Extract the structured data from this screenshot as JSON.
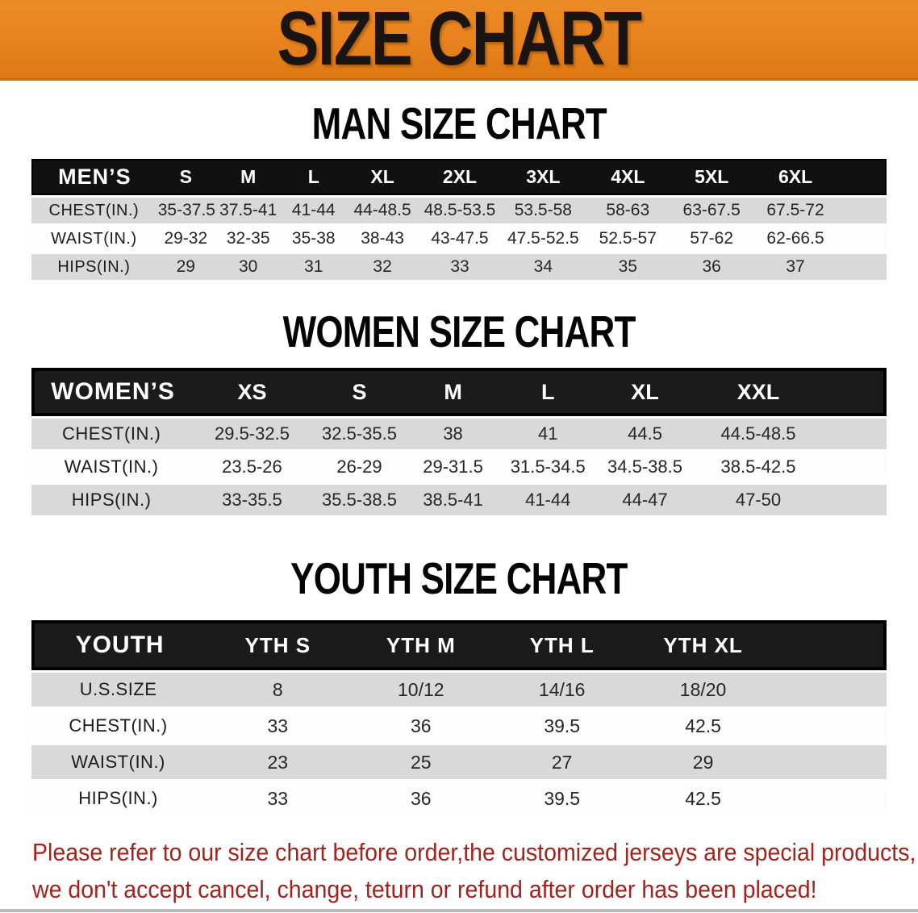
{
  "banner": {
    "title": "SIZE CHART"
  },
  "colors": {
    "banner_orange": "#E8821E",
    "header_black": "#141414",
    "stripe_gray": "#D9D9D9",
    "disclaimer_red": "#A2231E"
  },
  "sections": [
    {
      "heading": "MAN SIZE CHART",
      "table": {
        "header_label": "MEN’S",
        "columns": [
          "S",
          "M",
          "L",
          "XL",
          "2XL",
          "3XL",
          "4XL",
          "5XL",
          "6XL"
        ],
        "rows": [
          {
            "label": "CHEST(IN.)",
            "values": [
              "35-37.5",
              "37.5-41",
              "41-44",
              "44-48.5",
              "48.5-53.5",
              "53.5-58",
              "58-63",
              "63-67.5",
              "67.5-72"
            ]
          },
          {
            "label": "WAIST(IN.)",
            "values": [
              "29-32",
              "32-35",
              "35-38",
              "38-43",
              "43-47.5",
              "47.5-52.5",
              "52.5-57",
              "57-62",
              "62-66.5"
            ]
          },
          {
            "label": "HIPS(IN.)",
            "values": [
              "29",
              "30",
              "31",
              "32",
              "33",
              "34",
              "35",
              "36",
              "37"
            ]
          }
        ]
      }
    },
    {
      "heading": "WOMEN SIZE CHART",
      "table": {
        "header_label": "WOMEN’S",
        "columns": [
          "XS",
          "S",
          "M",
          "L",
          "XL",
          "XXL"
        ],
        "rows": [
          {
            "label": "CHEST(IN.)",
            "values": [
              "29.5-32.5",
              "32.5-35.5",
              "38",
              "41",
              "44.5",
              "44.5-48.5"
            ]
          },
          {
            "label": "WAIST(IN.)",
            "values": [
              "23.5-26",
              "26-29",
              "29-31.5",
              "31.5-34.5",
              "34.5-38.5",
              "38.5-42.5"
            ]
          },
          {
            "label": "HIPS(IN.)",
            "values": [
              "33-35.5",
              "35.5-38.5",
              "38.5-41",
              "41-44",
              "44-47",
              "47-50"
            ]
          }
        ]
      }
    },
    {
      "heading": "YOUTH SIZE CHART",
      "table": {
        "header_label": "YOUTH",
        "columns": [
          "YTH S",
          "YTH M",
          "YTH L",
          "YTH XL"
        ],
        "rows": [
          {
            "label": "U.S.SIZE",
            "values": [
              "8",
              "10/12",
              "14/16",
              "18/20"
            ]
          },
          {
            "label": "CHEST(IN.)",
            "values": [
              "33",
              "36",
              "39.5",
              "42.5"
            ]
          },
          {
            "label": "WAIST(IN.)",
            "values": [
              "23",
              "25",
              "27",
              "29"
            ]
          },
          {
            "label": "HIPS(IN.)",
            "values": [
              "33",
              "36",
              "39.5",
              "42.5"
            ]
          }
        ]
      }
    }
  ],
  "disclaimer": {
    "line1": "Please refer to our size chart before order,the customized jerseys are special products,",
    "line2": "we don't accept cancel, change, teturn or refund after order has been placed!"
  }
}
